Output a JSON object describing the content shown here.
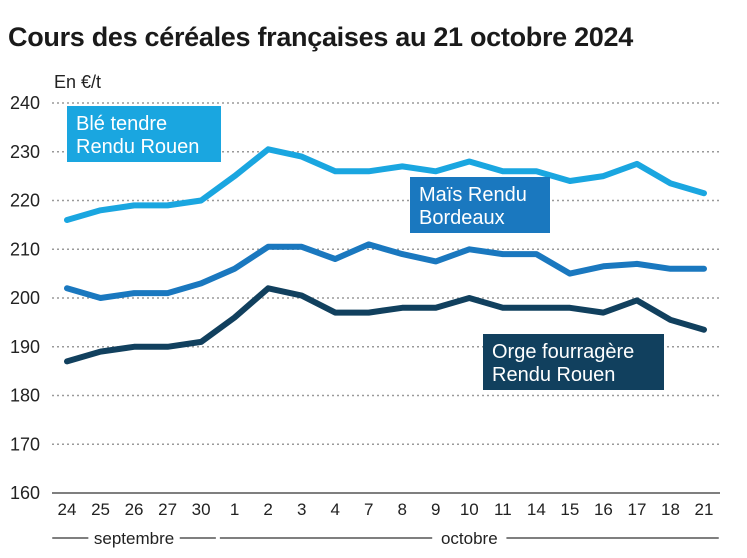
{
  "chart_data": {
    "type": "line",
    "title": "Cours des céréales françaises au 21 octobre 2024",
    "unit_label": "En €/t",
    "ylim": [
      160,
      240
    ],
    "yticks": [
      160,
      170,
      180,
      190,
      200,
      210,
      220,
      230,
      240
    ],
    "grid": true,
    "categories": [
      "24",
      "25",
      "26",
      "27",
      "30",
      "1",
      "2",
      "3",
      "4",
      "7",
      "8",
      "9",
      "10",
      "11",
      "14",
      "15",
      "16",
      "17",
      "18",
      "21"
    ],
    "months": [
      {
        "label": "septembre",
        "start": 0,
        "end": 4
      },
      {
        "label": "octobre",
        "start": 5,
        "end": 19
      }
    ],
    "series": [
      {
        "name": "Blé tendre Rendu Rouen",
        "label_lines": [
          "Blé tendre",
          "Rendu Rouen"
        ],
        "color": "#1aa6e0",
        "values": [
          216,
          218,
          219,
          219,
          220,
          225,
          230.5,
          229,
          226,
          226,
          227,
          226,
          228,
          226,
          226,
          224,
          225,
          227.5,
          223.5,
          221.5
        ]
      },
      {
        "name": "Maïs Rendu Bordeaux",
        "label_lines": [
          "Maïs Rendu",
          "Bordeaux"
        ],
        "color": "#1a78bf",
        "values": [
          202,
          200,
          201,
          201,
          203,
          206,
          210.5,
          210.5,
          208,
          211,
          209,
          207.5,
          210,
          209,
          209,
          205,
          206.5,
          207,
          206,
          206
        ]
      },
      {
        "name": "Orge fourragère Rendu Rouen",
        "label_lines": [
          "Orge fourragère",
          "Rendu Rouen"
        ],
        "color": "#11405e",
        "values": [
          187,
          189,
          190,
          190,
          191,
          196,
          202,
          200.5,
          197,
          197,
          198,
          198,
          200,
          198,
          198,
          198,
          197,
          199.5,
          195.5,
          193.5
        ]
      }
    ]
  }
}
